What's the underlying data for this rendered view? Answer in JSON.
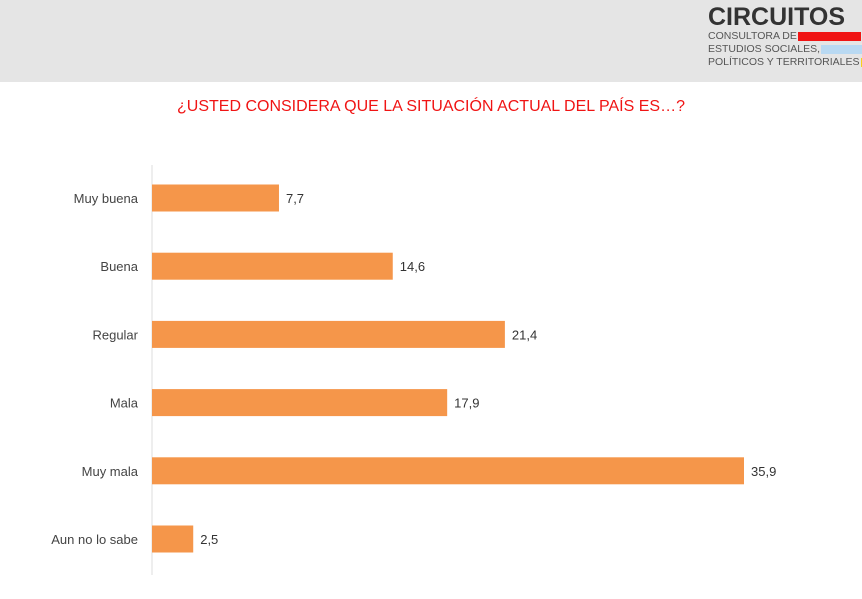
{
  "logo": {
    "name": "CIRCUITOS",
    "lines": [
      "CONSULTORA DE",
      "ESTUDIOS SOCIALES,",
      "POLÍTICOS Y TERRITORIALES"
    ],
    "colors": [
      "#f01414",
      "#b9d9f2",
      "#f7d21a"
    ]
  },
  "chart_data": {
    "type": "bar",
    "orientation": "horizontal",
    "title": "¿USTED CONSIDERA QUE LA SITUACIÓN ACTUAL DEL PAÍS ES…?",
    "categories": [
      "Muy buena",
      "Buena",
      "Regular",
      "Mala",
      "Muy mala",
      "Aun no lo sabe"
    ],
    "values": [
      7.7,
      14.6,
      21.4,
      17.9,
      35.9,
      2.5
    ],
    "value_labels": [
      "7,7",
      "14,6",
      "21,4",
      "17,9",
      "35,9",
      "2,5"
    ],
    "bar_color": "#f5964a",
    "title_color": "#f01414",
    "grid": false,
    "xlim": [
      0,
      36
    ]
  }
}
